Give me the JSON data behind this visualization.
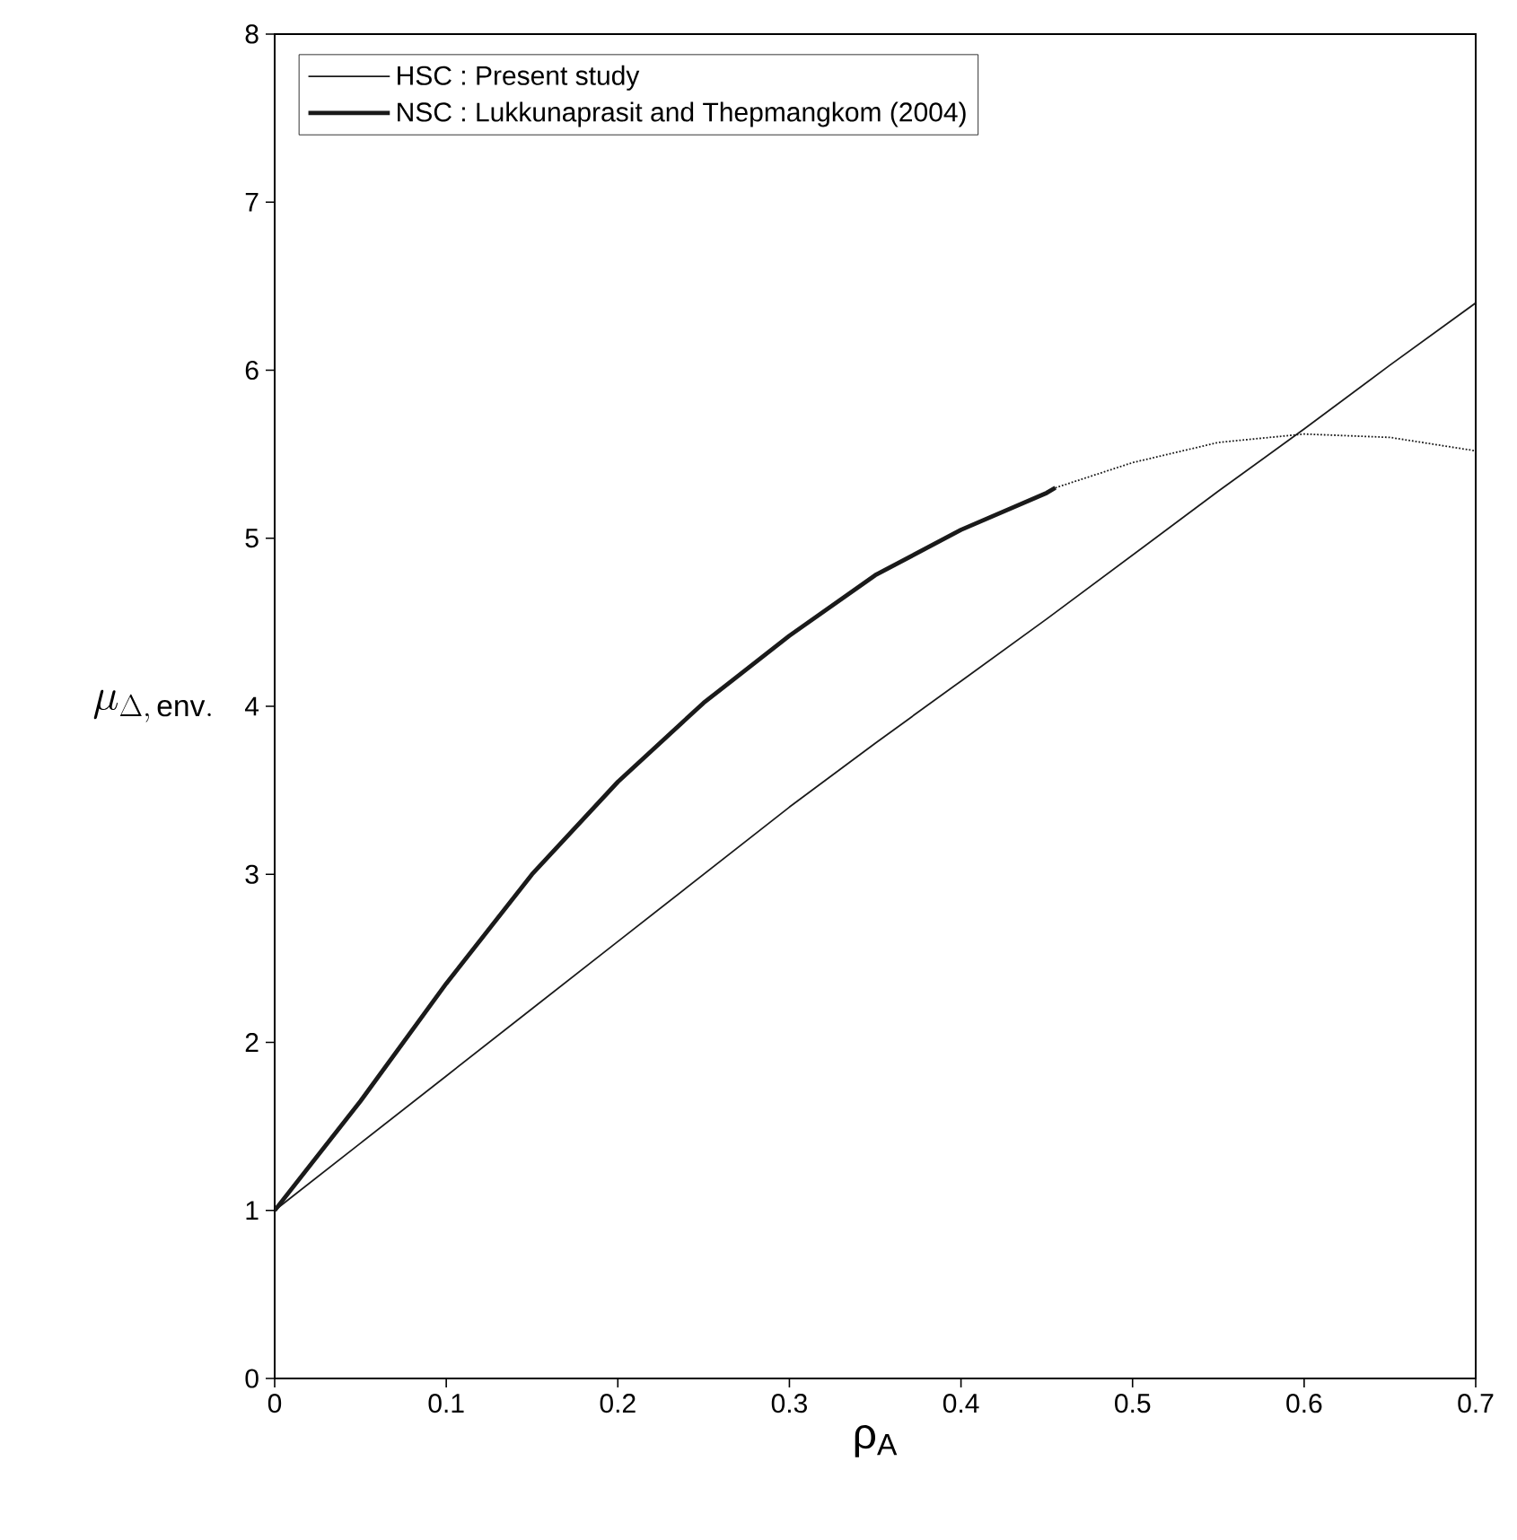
{
  "chart_data": {
    "type": "line",
    "xlabel": "ρ$_{A}$",
    "ylabel": "\\mu_{\\Delta,\\,\\mathrm{env.}}",
    "xlim": [
      0,
      0.7
    ],
    "ylim": [
      0,
      8
    ],
    "xticks": [
      0,
      0.1,
      0.2,
      0.3,
      0.4,
      0.5,
      0.6,
      0.7
    ],
    "yticks": [
      0,
      1,
      2,
      3,
      4,
      5,
      6,
      7,
      8
    ],
    "grid": false,
    "legend": "top left",
    "marker": "none",
    "series": [
      {
        "name": "HSC : Present study",
        "color": "#1a1a1a",
        "line_style": "solid",
        "x": [
          0,
          0.05,
          0.1,
          0.15,
          0.2,
          0.25,
          0.3,
          0.35,
          0.4,
          0.45,
          0.5,
          0.55,
          0.6,
          0.65,
          0.7
        ],
        "values": [
          1.0,
          1.4,
          1.8,
          2.2,
          2.6,
          3.0,
          3.4,
          3.78,
          4.15,
          4.52,
          4.9,
          5.28,
          5.65,
          6.03,
          6.4
        ]
      },
      {
        "name": "NSC : Lukkunaprasit and Thepmangkom (2004)",
        "color": "#1a1a1a",
        "line_style": "solid",
        "x": [
          0,
          0.05,
          0.1,
          0.15,
          0.2,
          0.25,
          0.3,
          0.35,
          0.4,
          0.45,
          0.455
        ],
        "values": [
          1.0,
          1.65,
          2.35,
          3.0,
          3.55,
          4.02,
          4.42,
          4.78,
          5.05,
          5.27,
          5.3
        ]
      },
      {
        "color": "#1a1a1a",
        "line_style": "dotted",
        "x": [
          0.455,
          0.5,
          0.55,
          0.6,
          0.65,
          0.7
        ],
        "values": [
          5.3,
          5.45,
          5.57,
          5.62,
          5.6,
          5.52
        ]
      }
    ]
  }
}
